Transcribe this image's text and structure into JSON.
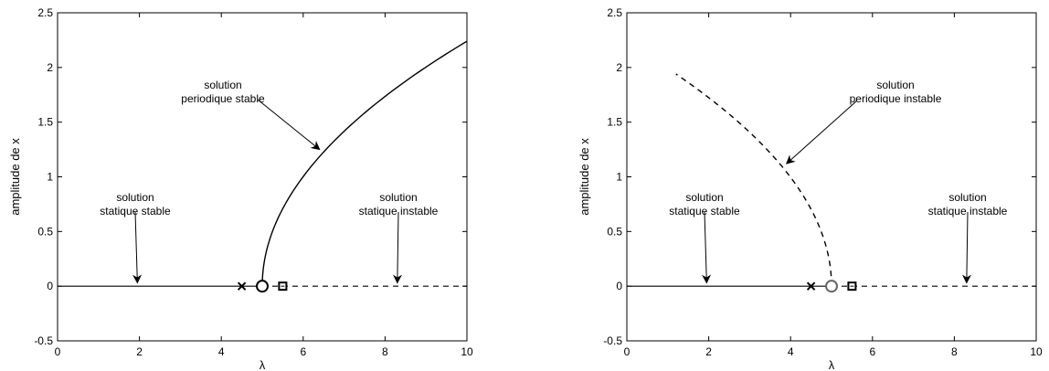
{
  "chart_data": [
    {
      "type": "line",
      "xlabel": "λ",
      "ylabel": "amplitude de x",
      "xlim": [
        0,
        10
      ],
      "ylim": [
        -0.5,
        2.5
      ],
      "xticks": [
        0,
        2,
        4,
        6,
        8,
        10
      ],
      "yticks": [
        -0.5,
        0,
        0.5,
        1,
        1.5,
        2,
        2.5
      ],
      "series": [
        {
          "style": "solid",
          "x": [
            0,
            5
          ],
          "y": [
            0,
            0
          ]
        },
        {
          "style": "dashed",
          "x": [
            5,
            10
          ],
          "y": [
            0,
            0
          ]
        },
        {
          "style": "solid",
          "curve": "supercritical",
          "x_start": 5,
          "x_end": 10,
          "y_at_end": 2.24
        }
      ],
      "markers": [
        {
          "symbol": "x",
          "x": 4.5,
          "y": 0
        },
        {
          "symbol": "circle",
          "x": 5.0,
          "y": 0
        },
        {
          "symbol": "square",
          "x": 5.5,
          "y": 0
        }
      ],
      "annotations": [
        {
          "lines": [
            "solution",
            "statique stable"
          ],
          "target": [
            1.95,
            0.03
          ]
        },
        {
          "lines": [
            "solution",
            "periodique stable"
          ],
          "target": [
            6.4,
            1.25
          ]
        },
        {
          "lines": [
            "solution",
            "statique instable"
          ],
          "target": [
            8.3,
            0.03
          ]
        }
      ]
    },
    {
      "type": "line",
      "xlabel": "λ",
      "ylabel": "amplitude de x",
      "xlim": [
        0,
        10
      ],
      "ylim": [
        -0.5,
        2.5
      ],
      "xticks": [
        0,
        2,
        4,
        6,
        8,
        10
      ],
      "yticks": [
        -0.5,
        0,
        0.5,
        1,
        1.5,
        2,
        2.5
      ],
      "series": [
        {
          "style": "solid",
          "x": [
            0,
            5
          ],
          "y": [
            0,
            0
          ]
        },
        {
          "style": "dashed",
          "x": [
            5,
            10
          ],
          "y": [
            0,
            0
          ]
        },
        {
          "style": "dashed",
          "curve": "subcritical",
          "x_start": 5,
          "x_end": 1.2,
          "y_at_end": 1.94
        }
      ],
      "markers": [
        {
          "symbol": "x",
          "x": 4.5,
          "y": 0
        },
        {
          "symbol": "circle",
          "x": 5.0,
          "y": 0
        },
        {
          "symbol": "square",
          "x": 5.5,
          "y": 0
        }
      ],
      "annotations": [
        {
          "lines": [
            "solution",
            "statique stable"
          ],
          "target": [
            1.95,
            0.03
          ]
        },
        {
          "lines": [
            "solution",
            "periodique instable"
          ],
          "target": [
            3.9,
            1.12
          ]
        },
        {
          "lines": [
            "solution",
            "statique instable"
          ],
          "target": [
            8.3,
            0.03
          ]
        }
      ]
    }
  ]
}
